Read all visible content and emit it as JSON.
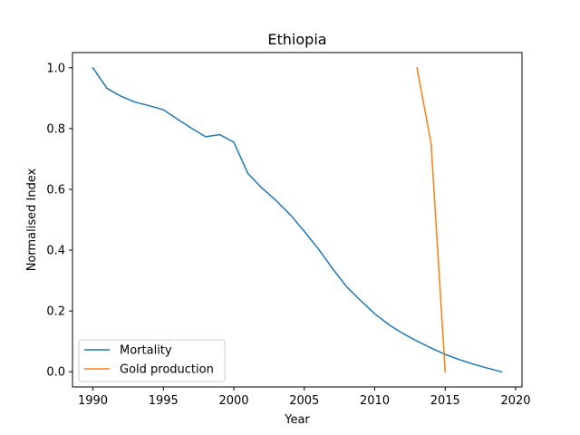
{
  "chart_data": {
    "type": "line",
    "title": "Ethiopia",
    "xlabel": "Year",
    "ylabel": "Normalised Index",
    "xlim": [
      1988.55,
      2020.45
    ],
    "ylim": [
      -0.05,
      1.05
    ],
    "xticks": [
      1990,
      1995,
      2000,
      2005,
      2010,
      2015,
      2020
    ],
    "yticks": [
      0.0,
      0.2,
      0.4,
      0.6,
      0.8,
      1.0
    ],
    "xtick_labels": [
      "1990",
      "1995",
      "2000",
      "2005",
      "2010",
      "2015",
      "2020"
    ],
    "ytick_labels": [
      "0.0",
      "0.2",
      "0.4",
      "0.6",
      "0.8",
      "1.0"
    ],
    "legend_position": "lower-left",
    "grid": false,
    "series": [
      {
        "name": "Mortality",
        "color": "#1f77b4",
        "x": [
          1990,
          1991,
          1992,
          1993,
          1994,
          1995,
          1996,
          1997,
          1998,
          1999,
          2000,
          2001,
          2002,
          2003,
          2004,
          2005,
          2006,
          2007,
          2008,
          2009,
          2010,
          2011,
          2012,
          2013,
          2014,
          2015,
          2016,
          2017,
          2018,
          2019
        ],
        "y": [
          1.0,
          0.932,
          0.906,
          0.887,
          0.875,
          0.862,
          0.831,
          0.801,
          0.773,
          0.78,
          0.755,
          0.652,
          0.604,
          0.563,
          0.517,
          0.462,
          0.404,
          0.34,
          0.28,
          0.234,
          0.191,
          0.155,
          0.126,
          0.101,
          0.078,
          0.057,
          0.04,
          0.025,
          0.012,
          0.0
        ]
      },
      {
        "name": "Gold production",
        "color": "#ff7f0e",
        "x": [
          2013,
          2014,
          2015
        ],
        "y": [
          1.0,
          0.75,
          0.0
        ]
      }
    ]
  }
}
